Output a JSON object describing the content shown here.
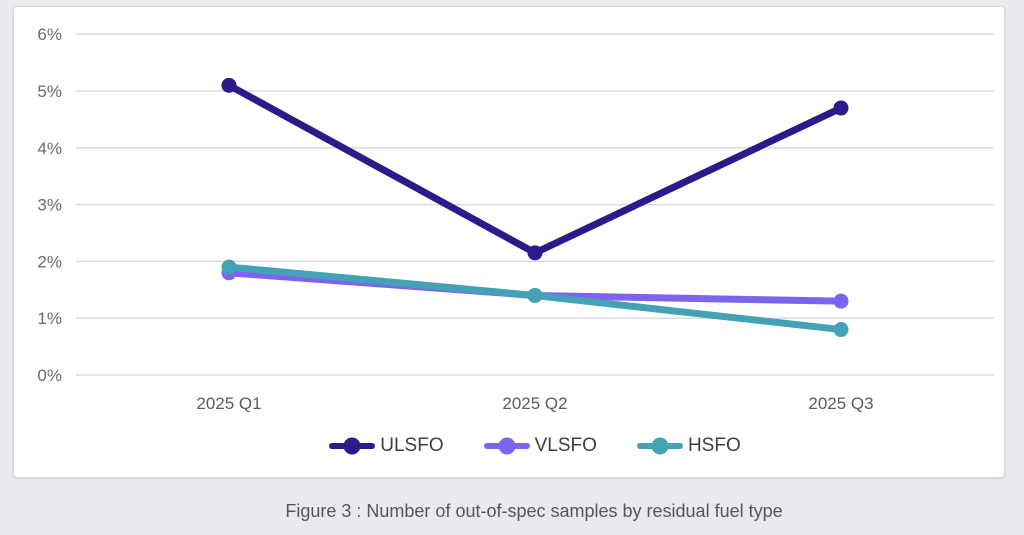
{
  "figure": {
    "caption": "Figure 3 : Number of out-of-spec samples by residual fuel type"
  },
  "colors": {
    "page_background": "#e9eaf0",
    "card_background": "#ffffff",
    "card_border": "#d8d8d8",
    "gridline": "#dbdbdb",
    "axis_tick_text": "#6a6a6a",
    "x_label_text": "#5c5c5c",
    "legend_text": "#3f3f3f",
    "caption_text": "#565656"
  },
  "chart_data": {
    "type": "line",
    "title": "",
    "xlabel": "",
    "ylabel": "",
    "y_unit": "%",
    "ylim": [
      0,
      6
    ],
    "y_ticks": [
      "0%",
      "1%",
      "2%",
      "3%",
      "4%",
      "5%",
      "6%"
    ],
    "grid": true,
    "legend_position": "bottom",
    "categories": [
      "2025 Q1",
      "2025 Q2",
      "2025 Q3"
    ],
    "series": [
      {
        "name": "ULSFO",
        "color": "#2a1a8a",
        "values": [
          5.1,
          2.15,
          4.7
        ]
      },
      {
        "name": "VLSFO",
        "color": "#7f63ee",
        "values": [
          1.8,
          1.4,
          1.3
        ]
      },
      {
        "name": "HSFO",
        "color": "#45a1b5",
        "values": [
          1.9,
          1.4,
          0.8
        ]
      }
    ]
  }
}
